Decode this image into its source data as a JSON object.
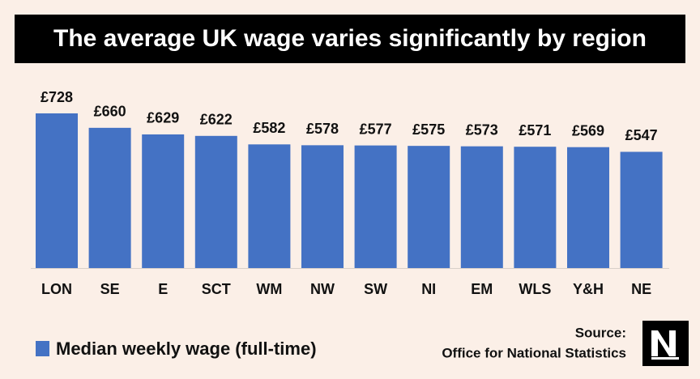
{
  "chart_data": {
    "type": "bar",
    "title": "The average UK wage varies significantly by region",
    "categories": [
      "LON",
      "SE",
      "E",
      "SCT",
      "WM",
      "NW",
      "SW",
      "NI",
      "EM",
      "WLS",
      "Y&H",
      "NE"
    ],
    "series": [
      {
        "name": "Median weekly wage (full-time)",
        "color": "#4472c4",
        "values": [
          728,
          660,
          629,
          622,
          582,
          578,
          577,
          575,
          573,
          571,
          569,
          547
        ],
        "value_labels": [
          "£728",
          "£660",
          "£629",
          "£622",
          "£582",
          "£578",
          "£577",
          "£575",
          "£573",
          "£571",
          "£569",
          "£547"
        ]
      }
    ],
    "source_heading": "Source:",
    "source": "Office for National Statistics"
  }
}
